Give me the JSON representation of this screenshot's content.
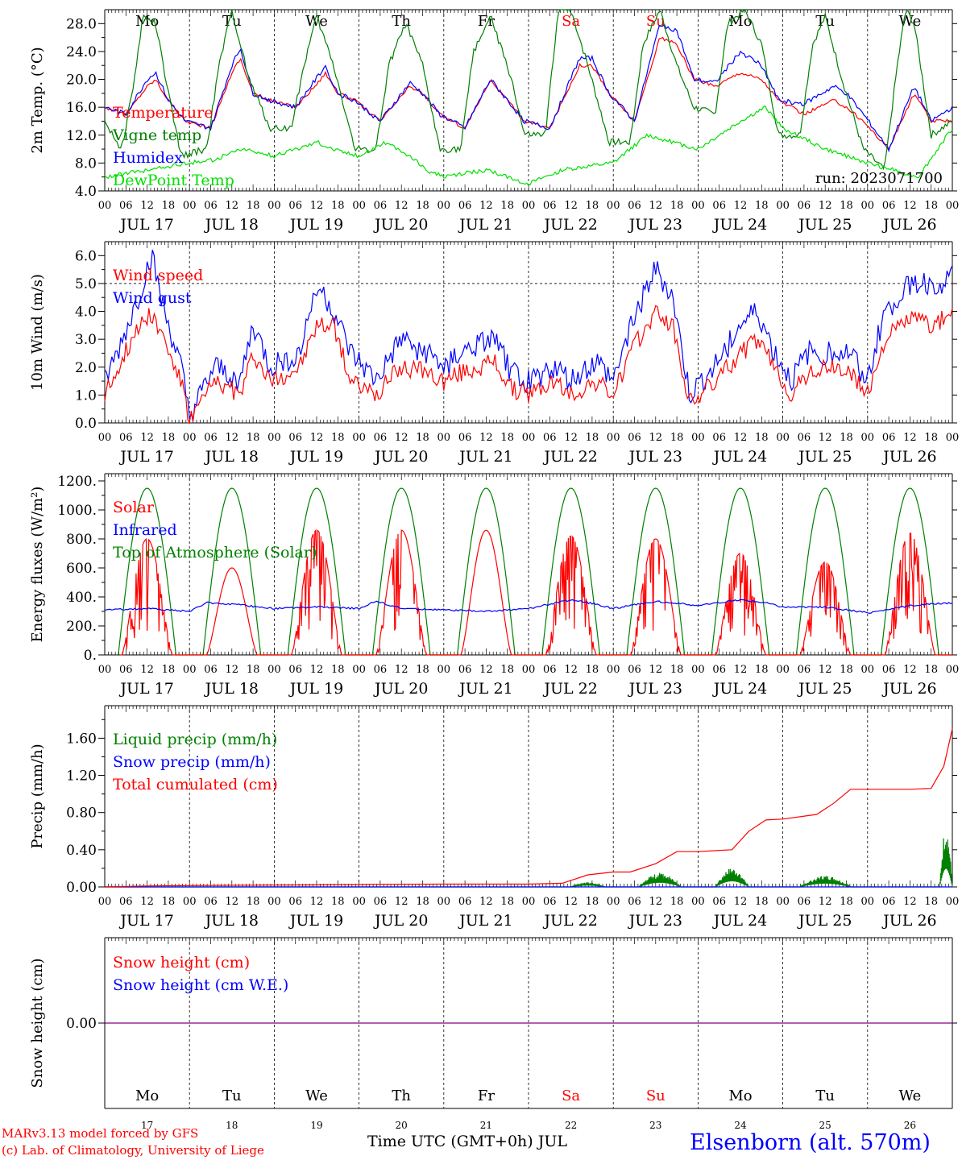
{
  "footer": {
    "model_line": "MARv3.13 model forced by GFS",
    "credit_line": "(c) Lab. of Climatology, University of Liege",
    "time_label": "Time UTC (GMT+0h) JUL",
    "station": "Elsenborn (alt. 570m)"
  },
  "colors": {
    "red": "#ff0000",
    "green": "#008000",
    "blue": "#0000ff",
    "lightgreen": "#00e000",
    "purple": "#800080"
  },
  "day_names": [
    "Mo",
    "Tu",
    "We",
    "Th",
    "Fr",
    "Sa",
    "Su",
    "Mo",
    "Tu",
    "We"
  ],
  "weekend_indices": [
    5,
    6
  ],
  "date_labels": [
    "JUL 17",
    "JUL 18",
    "JUL 19",
    "JUL 20",
    "JUL 21",
    "JUL 22",
    "JUL 23",
    "JUL 24",
    "JUL 25",
    "JUL 26"
  ],
  "day_numbers": [
    "17",
    "18",
    "19",
    "20",
    "21",
    "22",
    "23",
    "24",
    "25",
    "26"
  ],
  "hour_labels": [
    "00",
    "06",
    "12",
    "18"
  ],
  "hour_end_label": "00",
  "chart_data": [
    {
      "id": "temperature",
      "type": "line",
      "ylabel": "2m Temp. (°C)",
      "ylim": [
        4.0,
        30.0
      ],
      "yticks": [
        "4.0",
        "8.0",
        "12.0",
        "16.0",
        "20.0",
        "24.0",
        "28.0"
      ],
      "run_label": "run: 2023071700",
      "x_unit": "days since 2023-07-17 00 UTC",
      "legend": [
        {
          "name": "Temperature",
          "color": "#ff0000"
        },
        {
          "name": "Vigne temp",
          "color": "#008000"
        },
        {
          "name": "Humidex",
          "color": "#0000ff"
        },
        {
          "name": "DewPoint Temp",
          "color": "#00e000"
        }
      ],
      "series": [
        {
          "name": "Temperature",
          "color": "#ff0000",
          "wiggle": 0.25,
          "x": [
            0,
            0.25,
            0.5,
            0.6,
            0.75,
            0.95,
            1.25,
            1.5,
            1.6,
            1.75,
            1.95,
            2.25,
            2.55,
            2.6,
            2.75,
            2.95,
            3.25,
            3.6,
            3.75,
            3.95,
            4.25,
            4.55,
            4.75,
            4.95,
            5.25,
            5.6,
            5.75,
            5.95,
            6.25,
            6.55,
            6.75,
            6.95,
            7.2,
            7.5,
            7.75,
            7.95,
            8.25,
            8.6,
            8.75,
            8.95,
            9.25,
            9.55,
            9.75,
            10.0
          ],
          "y": [
            16,
            15,
            19,
            20,
            17,
            14,
            13,
            21,
            23,
            18,
            17,
            16,
            20,
            21,
            18,
            17,
            14,
            19,
            18,
            15,
            13,
            20,
            17,
            14,
            13,
            22,
            22,
            18,
            14,
            26,
            25,
            20,
            19,
            21,
            20,
            17,
            15,
            17,
            16,
            14,
            10,
            18,
            14,
            14
          ]
        },
        {
          "name": "Humidex",
          "color": "#0000ff",
          "wiggle": 0.35,
          "x": [
            0,
            0.25,
            0.5,
            0.6,
            0.75,
            0.95,
            1.25,
            1.5,
            1.6,
            1.75,
            1.95,
            2.25,
            2.55,
            2.6,
            2.75,
            2.95,
            3.25,
            3.6,
            3.75,
            3.95,
            4.25,
            4.55,
            4.75,
            4.95,
            5.25,
            5.6,
            5.75,
            5.95,
            6.25,
            6.55,
            6.75,
            6.95,
            7.2,
            7.5,
            7.75,
            7.95,
            8.25,
            8.6,
            8.75,
            8.95,
            9.25,
            9.55,
            9.75,
            10.0
          ],
          "y": [
            16,
            15,
            20,
            21,
            17,
            14,
            13,
            22,
            24.5,
            18,
            17,
            16,
            21,
            22,
            18,
            17,
            14,
            19.5,
            18,
            15,
            13,
            20,
            17,
            14,
            13,
            23,
            23,
            18,
            14,
            28,
            27,
            20,
            19.5,
            24,
            22,
            17,
            16.5,
            19,
            18,
            15,
            10,
            19,
            14,
            16
          ]
        },
        {
          "name": "Vigne temp",
          "color": "#008000",
          "wiggle": 0.5,
          "x": [
            0,
            0.2,
            0.35,
            0.45,
            0.6,
            0.75,
            0.9,
            1.2,
            1.35,
            1.5,
            1.7,
            1.95,
            2.2,
            2.35,
            2.5,
            2.7,
            2.95,
            3.2,
            3.35,
            3.55,
            3.75,
            3.95,
            4.2,
            4.35,
            4.55,
            4.8,
            4.95,
            5.2,
            5.35,
            5.5,
            5.7,
            5.95,
            6.2,
            6.35,
            6.55,
            6.75,
            6.95,
            7.2,
            7.35,
            7.55,
            7.75,
            7.95,
            8.2,
            8.35,
            8.5,
            8.7,
            8.95,
            9.2,
            9.35,
            9.45,
            9.55,
            9.75,
            10.0
          ],
          "y": [
            14,
            10,
            20,
            29,
            28,
            18,
            9,
            10,
            22,
            30,
            20,
            13,
            13,
            22,
            29,
            22,
            10,
            10,
            22,
            28,
            22,
            10,
            10,
            24,
            29,
            20,
            12,
            12,
            30,
            30,
            22,
            11,
            11,
            25,
            30,
            22,
            16,
            15,
            28,
            30,
            25,
            12,
            12,
            25,
            29,
            20,
            10,
            7,
            22,
            30,
            28,
            12,
            14
          ]
        },
        {
          "name": "DewPoint Temp",
          "color": "#00e000",
          "wiggle": 0.3,
          "x": [
            0,
            0.5,
            1.0,
            1.3,
            1.6,
            2.0,
            2.5,
            2.7,
            3.0,
            3.3,
            3.6,
            3.8,
            4.0,
            4.5,
            5.0,
            5.4,
            6.0,
            6.4,
            6.7,
            7.0,
            7.5,
            7.8,
            8.0,
            8.5,
            9.0,
            9.3,
            9.6,
            10.0
          ],
          "y": [
            6,
            7,
            8,
            8.5,
            10,
            9,
            11,
            10,
            9,
            11,
            9,
            7,
            6,
            7,
            5,
            7,
            8,
            12,
            11,
            10,
            14,
            16,
            13,
            10,
            8,
            7,
            6,
            13
          ]
        }
      ]
    },
    {
      "id": "wind",
      "type": "line",
      "ylabel": "10m Wind (m/s)",
      "ylim": [
        0.0,
        6.5
      ],
      "yticks": [
        "0.0",
        "1.0",
        "2.0",
        "3.0",
        "4.0",
        "5.0",
        "6.0"
      ],
      "ref_line": 5.0,
      "legend": [
        {
          "name": "Wind speed",
          "color": "#ff0000"
        },
        {
          "name": "Wind gust",
          "color": "#0000ff"
        }
      ],
      "series": [
        {
          "name": "Wind gust",
          "color": "#0000ff",
          "wiggle": 0.45,
          "x": [
            0,
            0.15,
            0.4,
            0.55,
            0.7,
            0.9,
            1.0,
            1.3,
            1.6,
            1.75,
            1.95,
            2.3,
            2.5,
            2.7,
            2.9,
            3.2,
            3.5,
            3.8,
            4.0,
            4.2,
            4.6,
            4.8,
            5.0,
            5.3,
            5.5,
            5.8,
            6.0,
            6.2,
            6.5,
            6.7,
            6.9,
            7.2,
            7.5,
            7.7,
            7.9,
            8.1,
            8.3,
            8.6,
            8.8,
            9.0,
            9.2,
            9.5,
            9.8,
            10.0
          ],
          "y": [
            1.5,
            2.5,
            4.5,
            6,
            4,
            2,
            0.2,
            2,
            1.5,
            3.5,
            2,
            2.5,
            5,
            4,
            2.5,
            1.5,
            3,
            2.5,
            2,
            2.5,
            3,
            1.8,
            1.5,
            2,
            1.5,
            2.2,
            1.5,
            3.5,
            5.5,
            4.5,
            1,
            2,
            3.5,
            4,
            2.5,
            1.5,
            2.5,
            2.5,
            2.5,
            1.5,
            4,
            5,
            5,
            5.2
          ]
        },
        {
          "name": "Wind speed",
          "color": "#ff0000",
          "wiggle": 0.35,
          "x": [
            0,
            0.15,
            0.4,
            0.55,
            0.7,
            0.9,
            1.0,
            1.3,
            1.6,
            1.75,
            1.95,
            2.3,
            2.5,
            2.7,
            2.9,
            3.2,
            3.5,
            3.8,
            4.0,
            4.2,
            4.6,
            4.8,
            5.0,
            5.3,
            5.5,
            5.8,
            6.0,
            6.2,
            6.5,
            6.7,
            6.9,
            7.2,
            7.5,
            7.7,
            7.9,
            8.1,
            8.3,
            8.6,
            8.8,
            9.0,
            9.2,
            9.5,
            9.8,
            10.0
          ],
          "y": [
            1,
            2,
            3.5,
            4,
            3,
            1.5,
            0.1,
            1.5,
            1,
            2.5,
            1.5,
            2,
            3.5,
            3.5,
            1.5,
            1,
            2,
            1.8,
            1.5,
            1.8,
            2.2,
            1.2,
            1,
            1.5,
            1,
            1.5,
            1,
            2.5,
            4,
            3.5,
            0.7,
            1.5,
            2.5,
            3,
            2,
            1,
            1.8,
            2,
            1.8,
            1,
            3,
            3.8,
            3.5,
            4
          ]
        }
      ]
    },
    {
      "id": "energy",
      "type": "line",
      "ylabel": "Energy fluxes (W/m²)",
      "ylim": [
        0,
        1250
      ],
      "yticks": [
        "0.",
        "200.",
        "400.",
        "600.",
        "800.",
        "1000.",
        "1200."
      ],
      "legend": [
        {
          "name": "Solar",
          "color": "#ff0000"
        },
        {
          "name": "Infrared",
          "color": "#0000ff"
        },
        {
          "name": "Top of Atmosphere (Solar)",
          "color": "#008000"
        }
      ],
      "series": [
        {
          "name": "Top of Atmosphere (Solar)",
          "color": "#008000",
          "kind": "toa",
          "peak": 1150,
          "sunrise": 0.16,
          "sunset": 0.84
        },
        {
          "name": "Solar",
          "color": "#ff0000",
          "kind": "solar",
          "sunrise": 0.2,
          "sunset": 0.8,
          "peaks": [
            800,
            600,
            860,
            860,
            860,
            820,
            800,
            700,
            640,
            840
          ],
          "noise": [
            0.5,
            0.05,
            0.35,
            0.3,
            0.05,
            0.45,
            0.25,
            0.5,
            0.3,
            0.5
          ]
        },
        {
          "name": "Infrared",
          "color": "#0000ff",
          "wiggle": 6,
          "x": [
            0,
            0.5,
            1.0,
            1.2,
            1.5,
            2.0,
            2.5,
            3.0,
            3.2,
            3.5,
            4.0,
            4.5,
            5.0,
            5.5,
            5.8,
            6.0,
            6.5,
            7.0,
            7.5,
            7.8,
            8.0,
            8.5,
            9.0,
            9.5,
            10.0
          ],
          "y": [
            310,
            320,
            300,
            360,
            350,
            320,
            330,
            320,
            370,
            320,
            310,
            300,
            320,
            380,
            350,
            320,
            370,
            340,
            380,
            360,
            330,
            330,
            290,
            340,
            360
          ]
        }
      ]
    },
    {
      "id": "precip",
      "type": "line",
      "ylabel": "Precip (mm/h)",
      "ylim": [
        0.0,
        1.95
      ],
      "yticks": [
        "0.00",
        "0.40",
        "0.80",
        "1.20",
        "1.60"
      ],
      "legend": [
        {
          "name": "Liquid precip (mm/h)",
          "color": "#008000"
        },
        {
          "name": "Snow precip (mm/h)",
          "color": "#0000ff"
        },
        {
          "name": "Total cumulated (cm)",
          "color": "#ff0000"
        }
      ],
      "series": [
        {
          "name": "Liquid precip (mm/h)",
          "color": "#008000",
          "kind": "bursts",
          "bursts": [
            [
              5.5,
              5.9,
              0.05
            ],
            [
              6.3,
              6.8,
              0.15
            ],
            [
              7.2,
              7.6,
              0.2
            ],
            [
              8.2,
              8.8,
              0.12
            ],
            [
              9.85,
              10.0,
              0.65
            ]
          ]
        },
        {
          "name": "Snow precip (mm/h)",
          "color": "#0000ff",
          "x": [
            0,
            10
          ],
          "y": [
            0,
            0
          ]
        },
        {
          "name": "Total cumulated (cm)",
          "color": "#ff0000",
          "x": [
            0,
            0.5,
            1,
            2,
            3,
            4,
            5,
            5.4,
            5.7,
            6.0,
            6.2,
            6.5,
            6.75,
            7.0,
            7.4,
            7.6,
            7.8,
            8.0,
            8.4,
            8.6,
            8.8,
            9.0,
            9.5,
            9.75,
            9.9,
            10.0
          ],
          "y": [
            0,
            0.01,
            0.015,
            0.02,
            0.025,
            0.03,
            0.03,
            0.04,
            0.13,
            0.16,
            0.16,
            0.25,
            0.38,
            0.38,
            0.4,
            0.6,
            0.72,
            0.73,
            0.78,
            0.9,
            1.05,
            1.05,
            1.05,
            1.06,
            1.3,
            1.7
          ]
        }
      ]
    },
    {
      "id": "snow",
      "type": "line",
      "ylabel": "Snow height (cm)",
      "ylim": [
        -1.0,
        1.0
      ],
      "yticks": [
        "0.00"
      ],
      "legend": [
        {
          "name": "Snow height (cm)",
          "color": "#ff0000"
        },
        {
          "name": "Snow height (cm W.E.)",
          "color": "#0000ff"
        }
      ],
      "series": [
        {
          "name": "Snow height",
          "color": "#800080",
          "x": [
            0,
            10
          ],
          "y": [
            0,
            0
          ]
        }
      ]
    }
  ]
}
